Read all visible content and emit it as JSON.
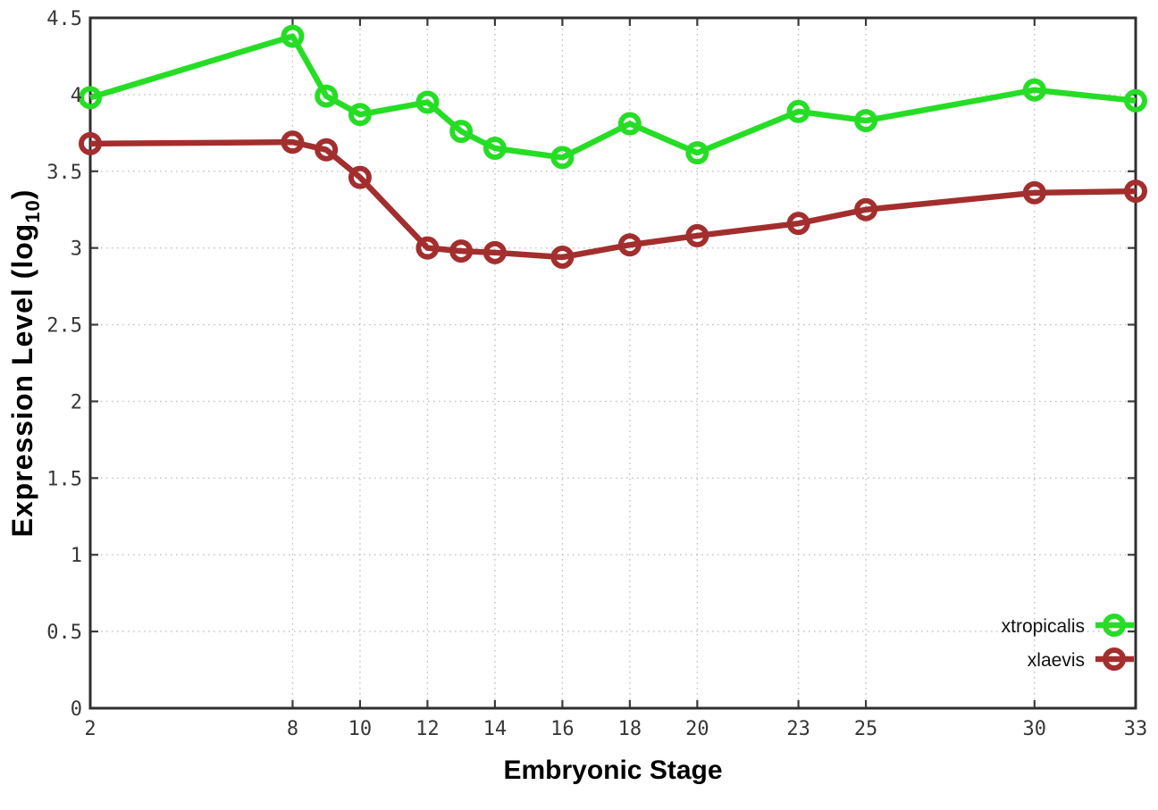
{
  "chart_data": {
    "type": "line",
    "title": "",
    "xlabel": "Embryonic Stage",
    "ylabel": "Expression Level (log10)",
    "ylabel_rich": {
      "prefix": "Expression Level (log",
      "subscript": "10",
      "suffix": ")"
    },
    "xlim": [
      2,
      33
    ],
    "ylim": [
      0,
      4.5
    ],
    "grid": true,
    "legend_position": "inside-bottom-right",
    "x": [
      2,
      8,
      9,
      10,
      12,
      13,
      14,
      16,
      18,
      20,
      23,
      25,
      30,
      33
    ],
    "xticks": [
      2,
      8,
      10,
      12,
      14,
      16,
      18,
      20,
      23,
      25,
      30,
      33
    ],
    "xtick_labels": [
      "2",
      "8",
      "10",
      "12",
      "14",
      "16",
      "18",
      "20",
      "23",
      "25",
      "30",
      "33"
    ],
    "yticks": [
      0,
      0.5,
      1,
      1.5,
      2,
      2.5,
      3,
      3.5,
      4,
      4.5
    ],
    "ytick_labels": [
      "0",
      "0.5",
      "1",
      "1.5",
      "2",
      "2.5",
      "3",
      "3.5",
      "4",
      "4.5"
    ],
    "series": [
      {
        "name": "xtropicalis",
        "color": "#26dd26",
        "marker": "open-circle",
        "values": [
          3.98,
          4.38,
          3.99,
          3.87,
          3.95,
          3.76,
          3.65,
          3.59,
          3.81,
          3.62,
          3.89,
          3.83,
          4.03,
          3.96
        ]
      },
      {
        "name": "xlaevis",
        "color": "#a32e2e",
        "marker": "open-circle",
        "values": [
          3.68,
          3.69,
          3.64,
          3.46,
          3.0,
          2.98,
          2.97,
          2.94,
          3.02,
          3.08,
          3.16,
          3.25,
          3.36,
          3.37
        ]
      }
    ]
  },
  "style_colors": {
    "background": "#ffffff",
    "plot_border": "#2f2f2f",
    "grid": "#c2c2c2",
    "tick_mark": "#3d3d3d",
    "tick_text": "#383838",
    "title_text": "#000000"
  }
}
